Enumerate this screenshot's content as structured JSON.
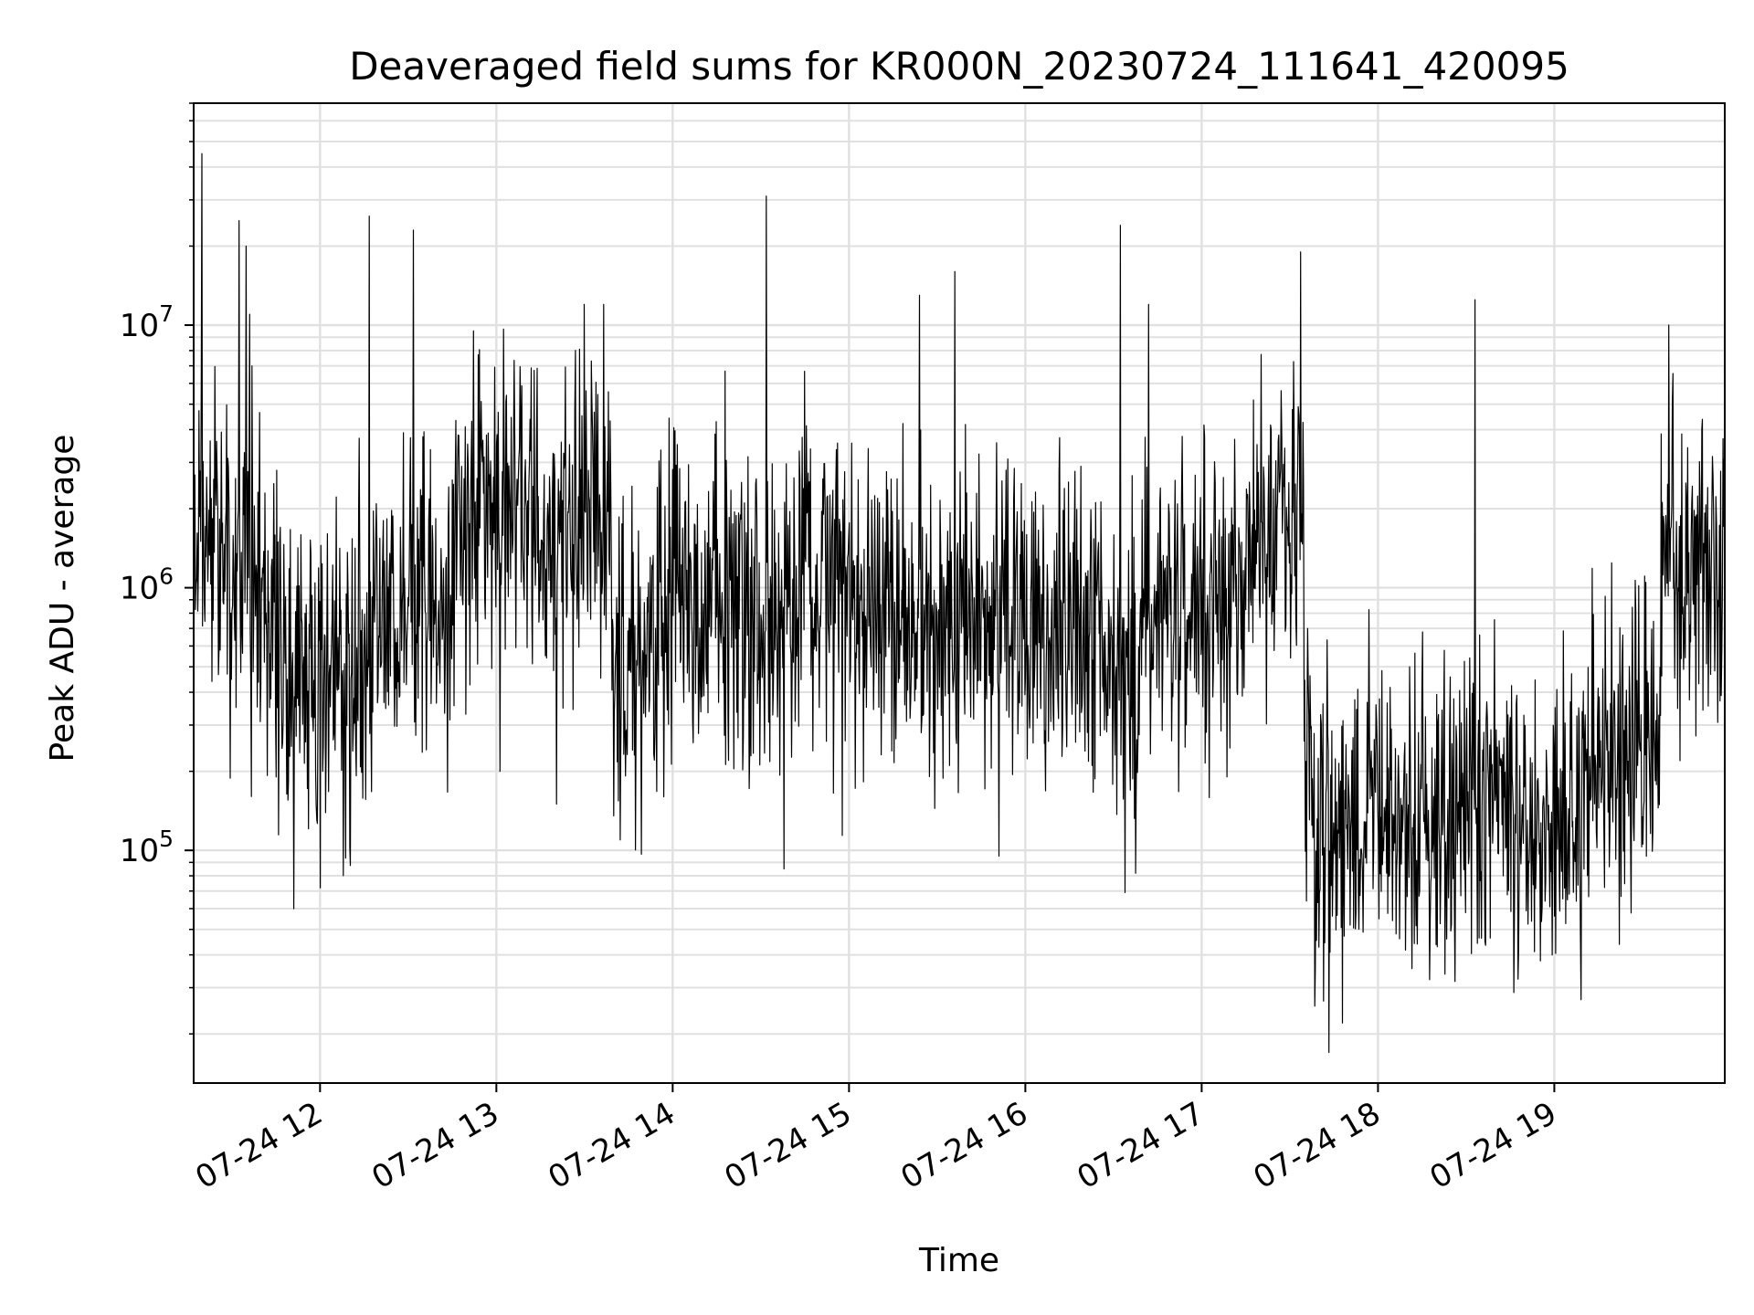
{
  "chart_data": {
    "type": "line",
    "title": "Deaveraged field sums for KR000N_20230724_111641_420095",
    "xlabel": "Time",
    "ylabel": "Peak ADU - average",
    "yscale": "log",
    "ylim": [
      13000,
      70000000
    ],
    "xlim": [
      "07-24 11:17",
      "07-24 19:58"
    ],
    "grid": true,
    "line_color": "#000000",
    "grid_color": "#e0e0e0",
    "x_ticks": [
      {
        "label": "07-24 12",
        "value": 12.0
      },
      {
        "label": "07-24 13",
        "value": 13.0
      },
      {
        "label": "07-24 14",
        "value": 14.0
      },
      {
        "label": "07-24 15",
        "value": 15.0
      },
      {
        "label": "07-24 16",
        "value": 16.0
      },
      {
        "label": "07-24 17",
        "value": 17.0
      },
      {
        "label": "07-24 18",
        "value": 18.0
      },
      {
        "label": "07-24 19",
        "value": 19.0
      }
    ],
    "y_ticks": [
      {
        "base": "10",
        "exp": "5",
        "value": 100000
      },
      {
        "base": "10",
        "exp": "6",
        "value": 1000000
      },
      {
        "base": "10",
        "exp": "7",
        "value": 10000000
      }
    ],
    "segments": [
      {
        "t0": 11.28,
        "t1": 11.5,
        "level": 1500000,
        "spread": 0.32
      },
      {
        "t0": 11.5,
        "t1": 11.72,
        "level": 1000000,
        "spread": 0.33
      },
      {
        "t0": 11.72,
        "t1": 12.3,
        "level": 450000,
        "spread": 0.32
      },
      {
        "t0": 12.3,
        "t1": 12.75,
        "level": 900000,
        "spread": 0.3
      },
      {
        "t0": 12.75,
        "t1": 13.65,
        "level": 1800000,
        "spread": 0.3
      },
      {
        "t0": 13.65,
        "t1": 13.9,
        "level": 550000,
        "spread": 0.3
      },
      {
        "t0": 13.9,
        "t1": 15.0,
        "level": 900000,
        "spread": 0.33
      },
      {
        "t0": 15.0,
        "t1": 16.45,
        "level": 750000,
        "spread": 0.3
      },
      {
        "t0": 16.45,
        "t1": 16.65,
        "level": 450000,
        "spread": 0.33
      },
      {
        "t0": 16.65,
        "t1": 17.25,
        "level": 900000,
        "spread": 0.3
      },
      {
        "t0": 17.25,
        "t1": 17.58,
        "level": 1800000,
        "spread": 0.27
      },
      {
        "t0": 17.58,
        "t1": 17.65,
        "level": 150000,
        "spread": 0.35
      },
      {
        "t0": 17.65,
        "t1": 19.15,
        "level": 140000,
        "spread": 0.3
      },
      {
        "t0": 19.15,
        "t1": 19.6,
        "level": 220000,
        "spread": 0.3
      },
      {
        "t0": 19.6,
        "t1": 19.97,
        "level": 1300000,
        "spread": 0.3
      }
    ],
    "spikes": [
      {
        "t": 11.33,
        "value": 45000000
      },
      {
        "t": 11.54,
        "value": 25000000
      },
      {
        "t": 11.58,
        "value": 20000000
      },
      {
        "t": 11.6,
        "value": 11000000
      },
      {
        "t": 11.85,
        "value": 60000
      },
      {
        "t": 12.0,
        "value": 72000
      },
      {
        "t": 12.28,
        "value": 26000000
      },
      {
        "t": 12.53,
        "value": 23000000
      },
      {
        "t": 12.87,
        "value": 9500000
      },
      {
        "t": 13.02,
        "value": 200000
      },
      {
        "t": 13.34,
        "value": 150000
      },
      {
        "t": 13.5,
        "value": 12000000
      },
      {
        "t": 13.61,
        "value": 12000000
      },
      {
        "t": 13.95,
        "value": 160000
      },
      {
        "t": 14.53,
        "value": 31000000
      },
      {
        "t": 14.63,
        "value": 85000
      },
      {
        "t": 15.4,
        "value": 13000000
      },
      {
        "t": 15.6,
        "value": 16000000
      },
      {
        "t": 15.85,
        "value": 95000
      },
      {
        "t": 16.54,
        "value": 24000000
      },
      {
        "t": 16.7,
        "value": 12000000
      },
      {
        "t": 17.56,
        "value": 19000000
      },
      {
        "t": 17.72,
        "value": 17000
      },
      {
        "t": 17.8,
        "value": 22000
      },
      {
        "t": 18.55,
        "value": 12500000
      },
      {
        "t": 19.15,
        "value": 27000
      },
      {
        "t": 19.65,
        "value": 10000000
      }
    ]
  }
}
